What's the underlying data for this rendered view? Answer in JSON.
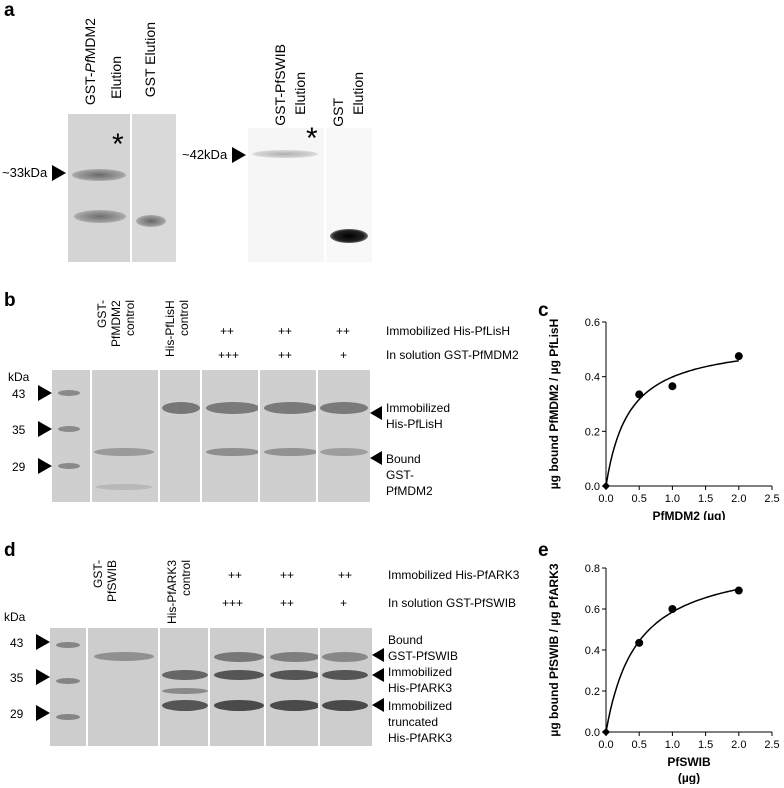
{
  "panels": {
    "a": "a",
    "b": "b",
    "c": "c",
    "d": "d",
    "e": "e"
  },
  "panel_a": {
    "left_blot": {
      "lane1": "GST-PfMDM2 Elution",
      "lane1_parts": [
        "GST-",
        "Pf",
        "MDM2"
      ],
      "lane1_line2": "Elution",
      "lane2": "GST Elution",
      "marker": "~33kDa",
      "asterisk": "*"
    },
    "right_blot": {
      "lane1_line1": "GST-PfSWIB",
      "lane1_line2": "Elution",
      "lane2_line1": "GST",
      "lane2_line2": "Elution",
      "marker": "~42kDa",
      "asterisk": "*"
    }
  },
  "panel_b": {
    "kda": "kDa",
    "markers": [
      "43",
      "35",
      "29"
    ],
    "lane_gst": [
      "GST-",
      "PfMDM2",
      "control"
    ],
    "lane_his": [
      "His-PfLisH",
      "control"
    ],
    "row1_label": "Immobilized His-PfLisH",
    "row2_label": "In solution GST-PfMDM2",
    "row1_values": [
      "++",
      "++",
      "++"
    ],
    "row2_values": [
      "+++",
      "++",
      "+"
    ],
    "band_labels": {
      "immobilized": [
        "Immobilized",
        "His-PfLisH"
      ],
      "bound": [
        "Bound",
        "GST-",
        "PfMDM2"
      ]
    }
  },
  "panel_d": {
    "kda": "kDa",
    "markers": [
      "43",
      "35",
      "29"
    ],
    "lane_gst": [
      "GST-",
      "PfSWIB"
    ],
    "lane_his": [
      "His-PfARK3",
      "control"
    ],
    "row1_label": "Immobilized His-PfARK3",
    "row2_label": "In solution GST-PfSWIB",
    "row1_values": [
      "++",
      "++",
      "++"
    ],
    "row2_values": [
      "+++",
      "++",
      "+"
    ],
    "band_labels": {
      "bound": [
        "Bound",
        "GST-PfSWIB"
      ],
      "immobilized": [
        "Immobilized",
        "His-PfARK3"
      ],
      "truncated": [
        "Immobilized",
        "truncated",
        "His-PfARK3"
      ]
    }
  },
  "chart_data": [
    {
      "type": "scatter",
      "panel": "c",
      "x": [
        0,
        0.5,
        1.0,
        2.0
      ],
      "y": [
        0,
        0.335,
        0.365,
        0.475
      ],
      "fit": "saturation curve",
      "xlabel": "PfMDM2 (µg)",
      "ylabel": "µg bound PfMDM2 / µg PfLisH",
      "xlim": [
        0,
        2.5
      ],
      "ylim": [
        0,
        0.6
      ],
      "xticks": [
        "0.0",
        "0.5",
        "1.0",
        "1.5",
        "2.0",
        "2.5"
      ],
      "yticks": [
        "0.0",
        "0.2",
        "0.4",
        "0.6"
      ],
      "grid": false
    },
    {
      "type": "scatter",
      "panel": "e",
      "x": [
        0,
        0.5,
        1.0,
        2.0
      ],
      "y": [
        0,
        0.435,
        0.6,
        0.69
      ],
      "fit": "saturation curve",
      "xlabel_line1": "PfSWIB",
      "xlabel_line2": "(µg)",
      "ylabel": "µg bound PfSWIB / µg PfARK3",
      "xlim": [
        0,
        2.5
      ],
      "ylim": [
        0,
        0.8
      ],
      "xticks": [
        "0.0",
        "0.5",
        "1.0",
        "1.5",
        "2.0",
        "2.5"
      ],
      "yticks": [
        "0.0",
        "0.2",
        "0.4",
        "0.6",
        "0.8"
      ],
      "grid": false
    }
  ]
}
